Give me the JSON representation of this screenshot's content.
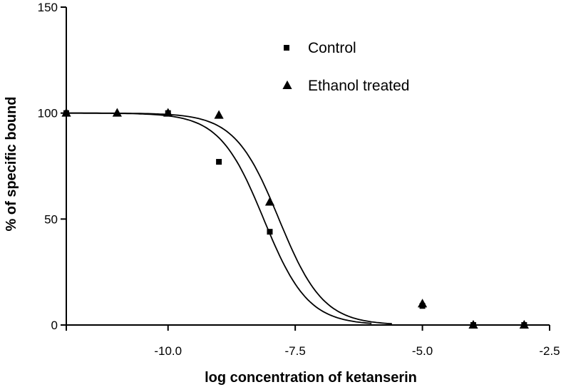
{
  "chart_data": {
    "type": "scatter",
    "xlabel": "log concentration of ketanserin",
    "ylabel": "% of specific bound",
    "xlim": [
      -12.0,
      -2.5
    ],
    "ylim": [
      0,
      150
    ],
    "x_ticks": [
      -10.0,
      -7.5,
      -5.0,
      -2.5
    ],
    "x_tick_labels": [
      "-10.0",
      "-7.5",
      "-5.0",
      "-2.5"
    ],
    "y_ticks": [
      0,
      50,
      100,
      150
    ],
    "y_tick_labels": [
      "0",
      "50",
      "100",
      "150"
    ],
    "grid": false,
    "legend_position": "top-center",
    "series": [
      {
        "name": "Control",
        "marker": "square",
        "x": [
          -12,
          -10,
          -9,
          -8,
          -5,
          -4,
          -3
        ],
        "y": [
          100,
          100,
          77,
          44,
          9,
          0,
          0
        ],
        "fit": {
          "model": "sigmoid",
          "top": 100,
          "bottom": 0,
          "log_ic50": -8.12,
          "hill": -1.0,
          "x_range": [
            -12,
            -6
          ]
        }
      },
      {
        "name": "Ethanol treated",
        "marker": "triangle",
        "x": [
          -12,
          -11,
          -10,
          -9,
          -8,
          -5,
          -4,
          -3
        ],
        "y": [
          100,
          100,
          100,
          99,
          58,
          10,
          0,
          0
        ],
        "fit": {
          "model": "sigmoid",
          "top": 100,
          "bottom": 0,
          "log_ic50": -7.82,
          "hill": -1.0,
          "x_range": [
            -12,
            -5.6
          ]
        }
      }
    ]
  }
}
